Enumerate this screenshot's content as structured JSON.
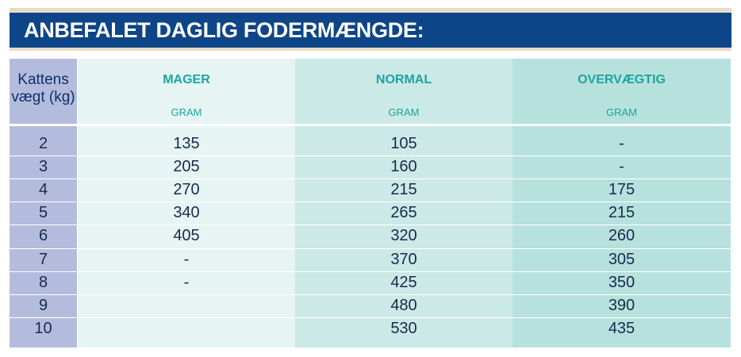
{
  "title": "ANBEFALET DAGLIG FODERMÆNGDE:",
  "header": {
    "weight_line1": "Kattens",
    "weight_line2": "vægt (kg)",
    "columns": [
      {
        "label": "MAGER",
        "unit": "GRAM"
      },
      {
        "label": "NORMAL",
        "unit": "GRAM"
      },
      {
        "label": "OVERVÆGTIG",
        "unit": "GRAM"
      }
    ]
  },
  "rows": [
    {
      "weight": "2",
      "mager": "135",
      "normal": "105",
      "over": "-"
    },
    {
      "weight": "3",
      "mager": "205",
      "normal": "160",
      "over": "-"
    },
    {
      "weight": "4",
      "mager": "270",
      "normal": "215",
      "over": "175"
    },
    {
      "weight": "5",
      "mager": "340",
      "normal": "265",
      "over": "215"
    },
    {
      "weight": "6",
      "mager": "405",
      "normal": "320",
      "over": "260"
    },
    {
      "weight": "7",
      "mager": "-",
      "normal": "370",
      "over": "305"
    },
    {
      "weight": "8",
      "mager": "-",
      "normal": "425",
      "over": "350"
    },
    {
      "weight": "9",
      "mager": "",
      "normal": "480",
      "over": "390"
    },
    {
      "weight": "10",
      "mager": "",
      "normal": "530",
      "over": "435"
    }
  ],
  "colors": {
    "title_band": "#0e4588",
    "weight_column": "#b4bcde",
    "mager_column": "#e6f4f4",
    "normal_column": "#cbe9e6",
    "over_column": "#b7e1dd",
    "header_text": "#1aa5a0"
  }
}
